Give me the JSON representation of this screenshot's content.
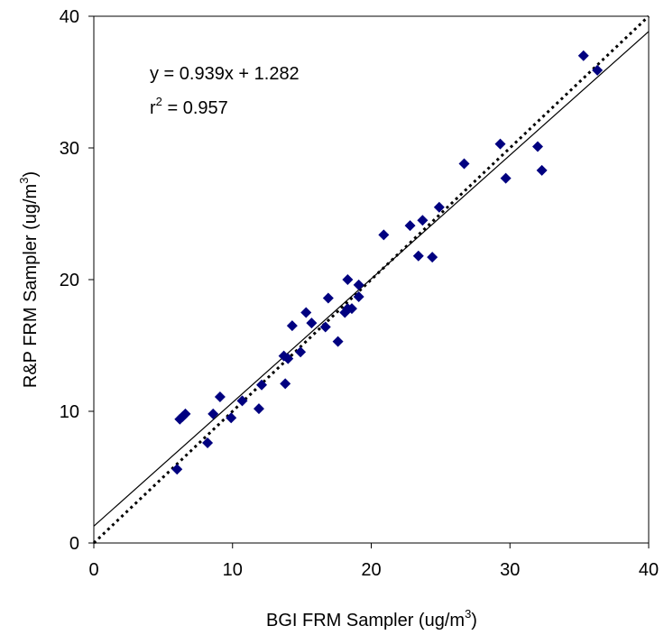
{
  "chart_data": {
    "type": "scatter",
    "title": "",
    "xlabel": {
      "prefix": "BGI FRM Sampler (ug/m",
      "sup": "3",
      "suffix": ")"
    },
    "ylabel": {
      "prefix": "R&P FRM Sampler (ug/m",
      "sup": "3",
      "suffix": ")"
    },
    "xlim": [
      0,
      40
    ],
    "ylim": [
      0,
      40
    ],
    "x_ticks": [
      0,
      10,
      20,
      30,
      40
    ],
    "y_ticks": [
      0,
      10,
      20,
      30,
      40
    ],
    "grid": false,
    "legend": "none",
    "marker": "diamond",
    "marker_color": "#000080",
    "annotations": {
      "equation": "y = 0.939x + 1.282",
      "r2_prefix": "r",
      "r2_sup": "2",
      "r2_suffix": " = 0.957"
    },
    "regression_line": {
      "slope": 0.939,
      "intercept": 1.282,
      "style": "solid"
    },
    "identity_line": {
      "slope": 1,
      "intercept": 0,
      "style": "dotted"
    },
    "points": [
      [
        6.0,
        5.6
      ],
      [
        6.2,
        9.4
      ],
      [
        6.4,
        9.6
      ],
      [
        6.6,
        9.8
      ],
      [
        8.2,
        7.6
      ],
      [
        8.6,
        9.8
      ],
      [
        9.1,
        11.1
      ],
      [
        9.9,
        9.5
      ],
      [
        10.7,
        10.8
      ],
      [
        11.9,
        10.2
      ],
      [
        12.1,
        12.0
      ],
      [
        13.7,
        14.2
      ],
      [
        13.8,
        12.1
      ],
      [
        14.0,
        14.0
      ],
      [
        14.3,
        16.5
      ],
      [
        14.9,
        14.5
      ],
      [
        15.3,
        17.5
      ],
      [
        15.7,
        16.7
      ],
      [
        16.7,
        16.4
      ],
      [
        16.9,
        18.6
      ],
      [
        17.6,
        15.3
      ],
      [
        18.1,
        17.5
      ],
      [
        18.3,
        17.8
      ],
      [
        18.3,
        20.0
      ],
      [
        18.6,
        17.8
      ],
      [
        19.1,
        18.7
      ],
      [
        19.1,
        19.6
      ],
      [
        20.9,
        23.4
      ],
      [
        22.8,
        24.1
      ],
      [
        23.4,
        21.8
      ],
      [
        23.7,
        24.5
      ],
      [
        24.4,
        21.7
      ],
      [
        24.9,
        25.5
      ],
      [
        26.7,
        28.8
      ],
      [
        29.3,
        30.3
      ],
      [
        29.7,
        27.7
      ],
      [
        32.0,
        30.1
      ],
      [
        32.3,
        28.3
      ],
      [
        35.3,
        37.0
      ],
      [
        36.3,
        35.9
      ]
    ]
  }
}
